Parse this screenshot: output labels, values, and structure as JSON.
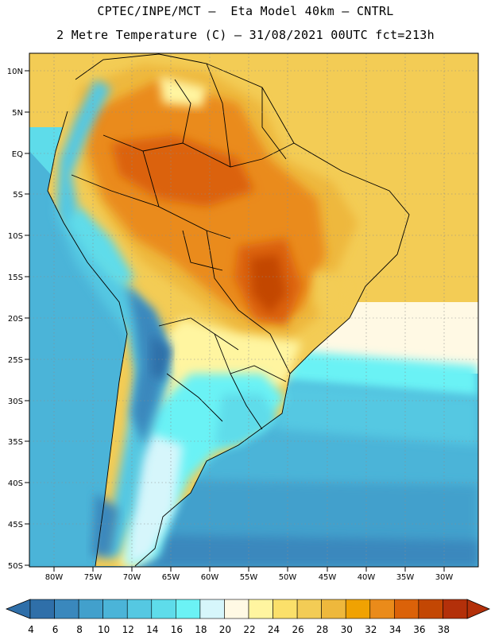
{
  "title_line1": "CPTEC/INPE/MCT –  Eta Model 40km – CNTRL",
  "title_line2": "2 Metre Temperature (C) – 31/08/2021 00UTC fct=213h",
  "lat_labels": [
    "10N",
    "5N",
    "EQ",
    "5S",
    "10S",
    "15S",
    "20S",
    "25S",
    "30S",
    "35S",
    "40S",
    "45S",
    "50S"
  ],
  "lon_labels": [
    "80W",
    "75W",
    "70W",
    "65W",
    "60W",
    "55W",
    "50W",
    "45W",
    "40W",
    "35W",
    "30W"
  ],
  "colorbar": {
    "ticks": [
      "4",
      "6",
      "8",
      "10",
      "12",
      "14",
      "16",
      "18",
      "20",
      "22",
      "24",
      "26",
      "28",
      "30",
      "32",
      "34",
      "36",
      "38"
    ],
    "colors": [
      "#2f6fa9",
      "#3a88bd",
      "#42a0cc",
      "#4bb4d8",
      "#55c8e2",
      "#5edcea",
      "#6bf2f5",
      "#d6f6fb",
      "#fff9e4",
      "#fff5a0",
      "#fbe06a",
      "#f3cc55",
      "#eeb83c",
      "#f0a202",
      "#ea8b1a",
      "#db6209",
      "#c34703",
      "#b3300a"
    ]
  }
}
